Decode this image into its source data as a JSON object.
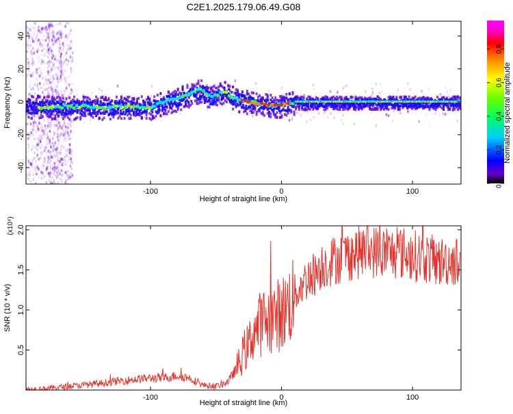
{
  "figure": {
    "title": "C2E1.2025.179.06.49.G08"
  },
  "chart_data": [
    {
      "type": "heatmap",
      "xlabel": "Height of straight line (km)",
      "ylabel": "Frequency (Hz)",
      "xlim": [
        -195,
        137
      ],
      "ylim": [
        -50,
        49
      ],
      "x_ticks": [
        -100,
        0,
        100
      ],
      "y_ticks": [
        -40,
        -20,
        0,
        20,
        40
      ],
      "grid": false,
      "colorbar": {
        "label": "Normalized spectral amplitude",
        "range": [
          0.0,
          0.97
        ],
        "ticks": [
          0.0,
          0.2,
          0.4,
          0.6,
          0.8
        ],
        "colormap": [
          "#000000",
          "#6600cc",
          "#0000ff",
          "#00ccff",
          "#00ff66",
          "#66ff00",
          "#ffff00",
          "#ff8800",
          "#ff0000",
          "#ff00cc",
          "#ff00ff"
        ]
      },
      "ridge": {
        "x": [
          -195,
          -180,
          -160,
          -140,
          -120,
          -100,
          -90,
          -80,
          -70,
          -62,
          -55,
          -48,
          -44,
          -40,
          -35,
          -30,
          -25,
          -20,
          -15,
          -10,
          -5,
          0,
          5,
          10,
          20,
          40,
          60,
          80,
          100,
          120,
          137
        ],
        "y": [
          -2,
          -3,
          -3,
          -3,
          -3,
          -3,
          0,
          2,
          5,
          7,
          3,
          5,
          6,
          4,
          2,
          1,
          0,
          -1,
          -1,
          -2,
          -2,
          -2,
          -1,
          0,
          0,
          0,
          0,
          0,
          0,
          0,
          0
        ]
      }
    },
    {
      "type": "line",
      "xlabel": "Height of straight line (km)",
      "ylabel": "SNR (10 * v/v)",
      "y_multiplier": "(x10⁴)",
      "xlim": [
        -195,
        137
      ],
      "ylim": [
        0,
        2.05
      ],
      "x_ticks": [
        -100,
        0,
        100
      ],
      "y_ticks": [
        0.5,
        1.0,
        1.5,
        2.0
      ],
      "y_tick_labels": [
        "0.5",
        "1.0",
        "1.5",
        "2.0"
      ],
      "grid": false,
      "series": [
        {
          "color": "#e8312a",
          "x": [
            -195,
            -180,
            -160,
            -140,
            -120,
            -100,
            -90,
            -80,
            -70,
            -60,
            -50,
            -45,
            -40,
            -35,
            -30,
            -28,
            -25,
            -22,
            -20,
            -15,
            -10,
            -5,
            0,
            5,
            10,
            15,
            20,
            25,
            30,
            40,
            50,
            60,
            70,
            80,
            90,
            100,
            110,
            120,
            130,
            137
          ],
          "values": [
            0.01,
            0.02,
            0.05,
            0.08,
            0.12,
            0.15,
            0.15,
            0.18,
            0.15,
            0.06,
            0.05,
            0.07,
            0.12,
            0.25,
            0.42,
            0.5,
            0.55,
            0.72,
            0.75,
            0.85,
            0.88,
            0.92,
            0.95,
            1.05,
            1.2,
            1.3,
            1.4,
            1.45,
            1.55,
            1.62,
            1.68,
            1.72,
            1.73,
            1.7,
            1.72,
            1.68,
            1.65,
            1.6,
            1.62,
            1.58
          ]
        }
      ]
    }
  ]
}
